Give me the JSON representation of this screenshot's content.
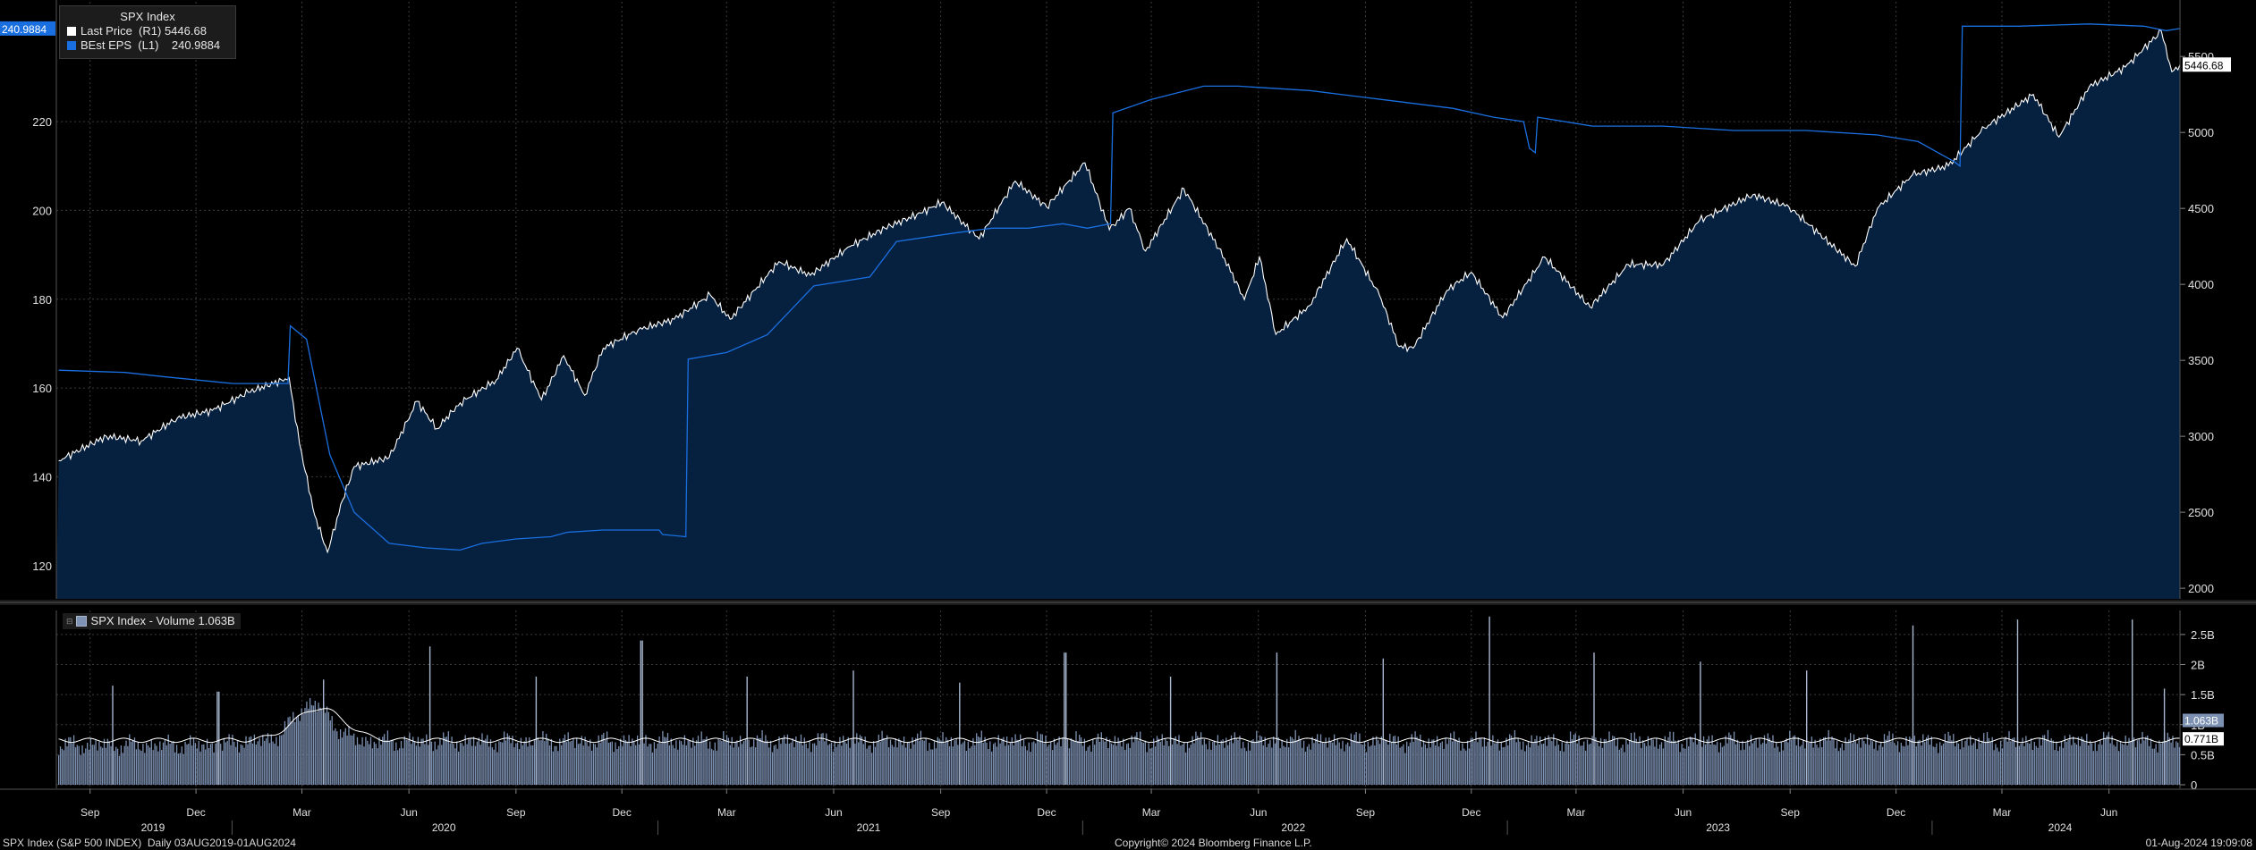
{
  "legend": {
    "title": "SPX Index",
    "items": [
      {
        "label": "Last Price  (R1)",
        "value": "5446.68",
        "color": "#ffffff"
      },
      {
        "label": "BEst EPS  (L1)",
        "value": "240.9884",
        "color": "#1a6fe0"
      }
    ]
  },
  "volume_legend": {
    "icon_text": "⊟",
    "label": "SPX Index - Volume 1.063B",
    "color": "#7f93b5"
  },
  "footer": {
    "left": "SPX Index (S&P 500 INDEX)  Daily 03AUG2019-01AUG2024",
    "center": "Copyright© 2024 Bloomberg Finance L.P.",
    "right": "01-Aug-2024 19:09:08"
  },
  "colors": {
    "background": "#000000",
    "area_fill": "#06203f",
    "price_line": "#ffffff",
    "eps_line": "#1a6fe0",
    "volume_bar": "#7d91b3",
    "grid": "#3c3c3c"
  },
  "chart_data": [
    {
      "type": "line",
      "x_range": [
        "2019-08-03",
        "2024-08-01"
      ],
      "left_axis": {
        "series": "BEst EPS (L1)",
        "ticks": [
          120,
          140,
          160,
          180,
          200,
          220
        ],
        "range": [
          112.5,
          247
        ],
        "last_value_label": "240.9884"
      },
      "right_axis": {
        "series": "Last Price (R1)",
        "ticks": [
          2000,
          2500,
          3000,
          3500,
          4000,
          4500,
          5000,
          5500
        ],
        "range": [
          1930,
          5860
        ],
        "last_value_label": "5446.68"
      },
      "x_month_ticks": [
        "Sep",
        "Dec",
        "Mar",
        "Jun",
        "Sep",
        "Dec",
        "Mar",
        "Jun",
        "Sep",
        "Dec",
        "Mar",
        "Jun",
        "Sep",
        "Dec",
        "Mar",
        "Jun",
        "Sep",
        "Dec",
        "Mar",
        "Jun"
      ],
      "x_year_labels": [
        "2019",
        "2020",
        "2021",
        "2022",
        "2023",
        "2024"
      ],
      "series": [
        {
          "name": "Last Price (R1)",
          "axis": "right",
          "style": "area",
          "points": [
            [
              "2019-08-05",
              2840
            ],
            [
              "2019-09-15",
              3000
            ],
            [
              "2019-10-15",
              2970
            ],
            [
              "2019-11-15",
              3120
            ],
            [
              "2019-12-15",
              3170
            ],
            [
              "2020-01-15",
              3290
            ],
            [
              "2020-02-19",
              3386
            ],
            [
              "2020-02-28",
              2950
            ],
            [
              "2020-03-12",
              2480
            ],
            [
              "2020-03-23",
              2237
            ],
            [
              "2020-04-05",
              2580
            ],
            [
              "2020-04-15",
              2800
            ],
            [
              "2020-05-15",
              2860
            ],
            [
              "2020-06-08",
              3230
            ],
            [
              "2020-06-25",
              3050
            ],
            [
              "2020-07-15",
              3220
            ],
            [
              "2020-08-15",
              3370
            ],
            [
              "2020-09-02",
              3580
            ],
            [
              "2020-09-23",
              3240
            ],
            [
              "2020-10-12",
              3530
            ],
            [
              "2020-10-30",
              3270
            ],
            [
              "2020-11-15",
              3580
            ],
            [
              "2020-12-15",
              3700
            ],
            [
              "2021-01-15",
              3770
            ],
            [
              "2021-02-15",
              3930
            ],
            [
              "2021-03-04",
              3770
            ],
            [
              "2021-04-15",
              4150
            ],
            [
              "2021-05-12",
              4060
            ],
            [
              "2021-06-15",
              4250
            ],
            [
              "2021-07-15",
              4370
            ],
            [
              "2021-08-15",
              4470
            ],
            [
              "2021-09-02",
              4540
            ],
            [
              "2021-10-04",
              4300
            ],
            [
              "2021-11-04",
              4680
            ],
            [
              "2021-12-01",
              4510
            ],
            [
              "2022-01-03",
              4800
            ],
            [
              "2022-01-24",
              4360
            ],
            [
              "2022-02-10",
              4500
            ],
            [
              "2022-02-24",
              4220
            ],
            [
              "2022-03-29",
              4630
            ],
            [
              "2022-05-03",
              4170
            ],
            [
              "2022-05-20",
              3900
            ],
            [
              "2022-06-02",
              4180
            ],
            [
              "2022-06-16",
              3670
            ],
            [
              "2022-07-15",
              3860
            ],
            [
              "2022-08-16",
              4300
            ],
            [
              "2022-09-13",
              3930
            ],
            [
              "2022-09-30",
              3590
            ],
            [
              "2022-10-12",
              3580
            ],
            [
              "2022-11-10",
              3960
            ],
            [
              "2022-12-01",
              4080
            ],
            [
              "2022-12-28",
              3780
            ],
            [
              "2023-02-02",
              4180
            ],
            [
              "2023-03-13",
              3850
            ],
            [
              "2023-04-15",
              4130
            ],
            [
              "2023-05-15",
              4130
            ],
            [
              "2023-06-15",
              4420
            ],
            [
              "2023-07-31",
              4590
            ],
            [
              "2023-08-31",
              4510
            ],
            [
              "2023-10-27",
              4120
            ],
            [
              "2023-11-15",
              4500
            ],
            [
              "2023-12-15",
              4720
            ],
            [
              "2024-01-15",
              4780
            ],
            [
              "2024-02-15",
              5030
            ],
            [
              "2024-03-28",
              5250
            ],
            [
              "2024-04-19",
              4970
            ],
            [
              "2024-05-15",
              5300
            ],
            [
              "2024-06-15",
              5430
            ],
            [
              "2024-07-16",
              5667
            ],
            [
              "2024-07-25",
              5400
            ],
            [
              "2024-08-01",
              5446.68
            ]
          ]
        },
        {
          "name": "BEst EPS (L1)",
          "axis": "left",
          "style": "step",
          "points": [
            [
              "2019-08-05",
              164
            ],
            [
              "2019-10-01",
              163.5
            ],
            [
              "2019-11-05",
              162.5
            ],
            [
              "2020-01-02",
              161
            ],
            [
              "2020-02-18",
              161
            ],
            [
              "2020-02-20",
              174
            ],
            [
              "2020-03-05",
              171
            ],
            [
              "2020-03-25",
              145
            ],
            [
              "2020-04-15",
              132
            ],
            [
              "2020-05-15",
              125
            ],
            [
              "2020-06-15",
              124
            ],
            [
              "2020-07-15",
              123.5
            ],
            [
              "2020-08-03",
              125
            ],
            [
              "2020-09-01",
              126
            ],
            [
              "2020-10-01",
              126.5
            ],
            [
              "2020-10-15",
              127.5
            ],
            [
              "2020-11-15",
              128
            ],
            [
              "2021-01-02",
              128
            ],
            [
              "2021-01-05",
              127
            ],
            [
              "2021-01-25",
              126.5
            ],
            [
              "2021-01-27",
              166.5
            ],
            [
              "2021-03-01",
              168
            ],
            [
              "2021-04-05",
              172
            ],
            [
              "2021-05-15",
              183
            ],
            [
              "2021-07-02",
              185
            ],
            [
              "2021-07-25",
              193
            ],
            [
              "2021-09-15",
              195
            ],
            [
              "2021-10-15",
              196
            ],
            [
              "2021-11-15",
              196
            ],
            [
              "2021-12-15",
              197
            ],
            [
              "2022-01-05",
              196
            ],
            [
              "2022-01-25",
              197
            ],
            [
              "2022-01-27",
              222
            ],
            [
              "2022-03-01",
              225
            ],
            [
              "2022-04-15",
              228
            ],
            [
              "2022-05-15",
              228
            ],
            [
              "2022-07-15",
              227
            ],
            [
              "2022-09-15",
              225
            ],
            [
              "2022-11-15",
              223
            ],
            [
              "2022-12-20",
              221
            ],
            [
              "2023-01-15",
              220
            ],
            [
              "2023-01-20",
              214
            ],
            [
              "2023-01-25",
              213
            ],
            [
              "2023-01-27",
              221
            ],
            [
              "2023-03-15",
              219
            ],
            [
              "2023-05-15",
              219
            ],
            [
              "2023-07-15",
              218
            ],
            [
              "2023-09-15",
              218
            ],
            [
              "2023-11-15",
              217
            ],
            [
              "2023-12-20",
              215.5
            ],
            [
              "2024-01-20",
              211
            ],
            [
              "2024-01-25",
              210
            ],
            [
              "2024-01-27",
              241.5
            ],
            [
              "2024-03-15",
              241.5
            ],
            [
              "2024-05-15",
              242
            ],
            [
              "2024-07-01",
              241.5
            ],
            [
              "2024-07-20",
              240.5
            ],
            [
              "2024-08-01",
              240.9884
            ]
          ]
        }
      ]
    },
    {
      "type": "bar",
      "title": "SPX Index - Volume",
      "y_ticks": [
        0,
        0.5,
        1,
        1.5,
        2,
        2.5
      ],
      "y_tick_labels": [
        "0",
        "0.5B",
        "1B",
        "1.5B",
        "2B",
        "2.5B"
      ],
      "unit": "B",
      "last_value_label": "1.063B",
      "moving_average_label": "0.771B",
      "baseline_B": 0.72,
      "covid_peak_B": 1.35,
      "spikes": [
        [
          "2019-09-20",
          1.65
        ],
        [
          "2019-12-20",
          1.55
        ],
        [
          "2020-03-20",
          1.75
        ],
        [
          "2020-06-19",
          2.3
        ],
        [
          "2020-09-18",
          1.8
        ],
        [
          "2020-12-18",
          2.4
        ],
        [
          "2021-03-19",
          1.8
        ],
        [
          "2021-06-18",
          1.9
        ],
        [
          "2021-09-17",
          1.7
        ],
        [
          "2021-12-17",
          2.2
        ],
        [
          "2022-03-18",
          1.8
        ],
        [
          "2022-06-17",
          2.2
        ],
        [
          "2022-09-16",
          2.1
        ],
        [
          "2022-12-16",
          2.8
        ],
        [
          "2023-03-17",
          2.2
        ],
        [
          "2023-06-16",
          2.05
        ],
        [
          "2023-09-15",
          1.9
        ],
        [
          "2023-12-15",
          2.65
        ],
        [
          "2024-03-15",
          2.75
        ],
        [
          "2024-06-21",
          2.75
        ],
        [
          "2024-07-19",
          1.6
        ]
      ]
    }
  ]
}
